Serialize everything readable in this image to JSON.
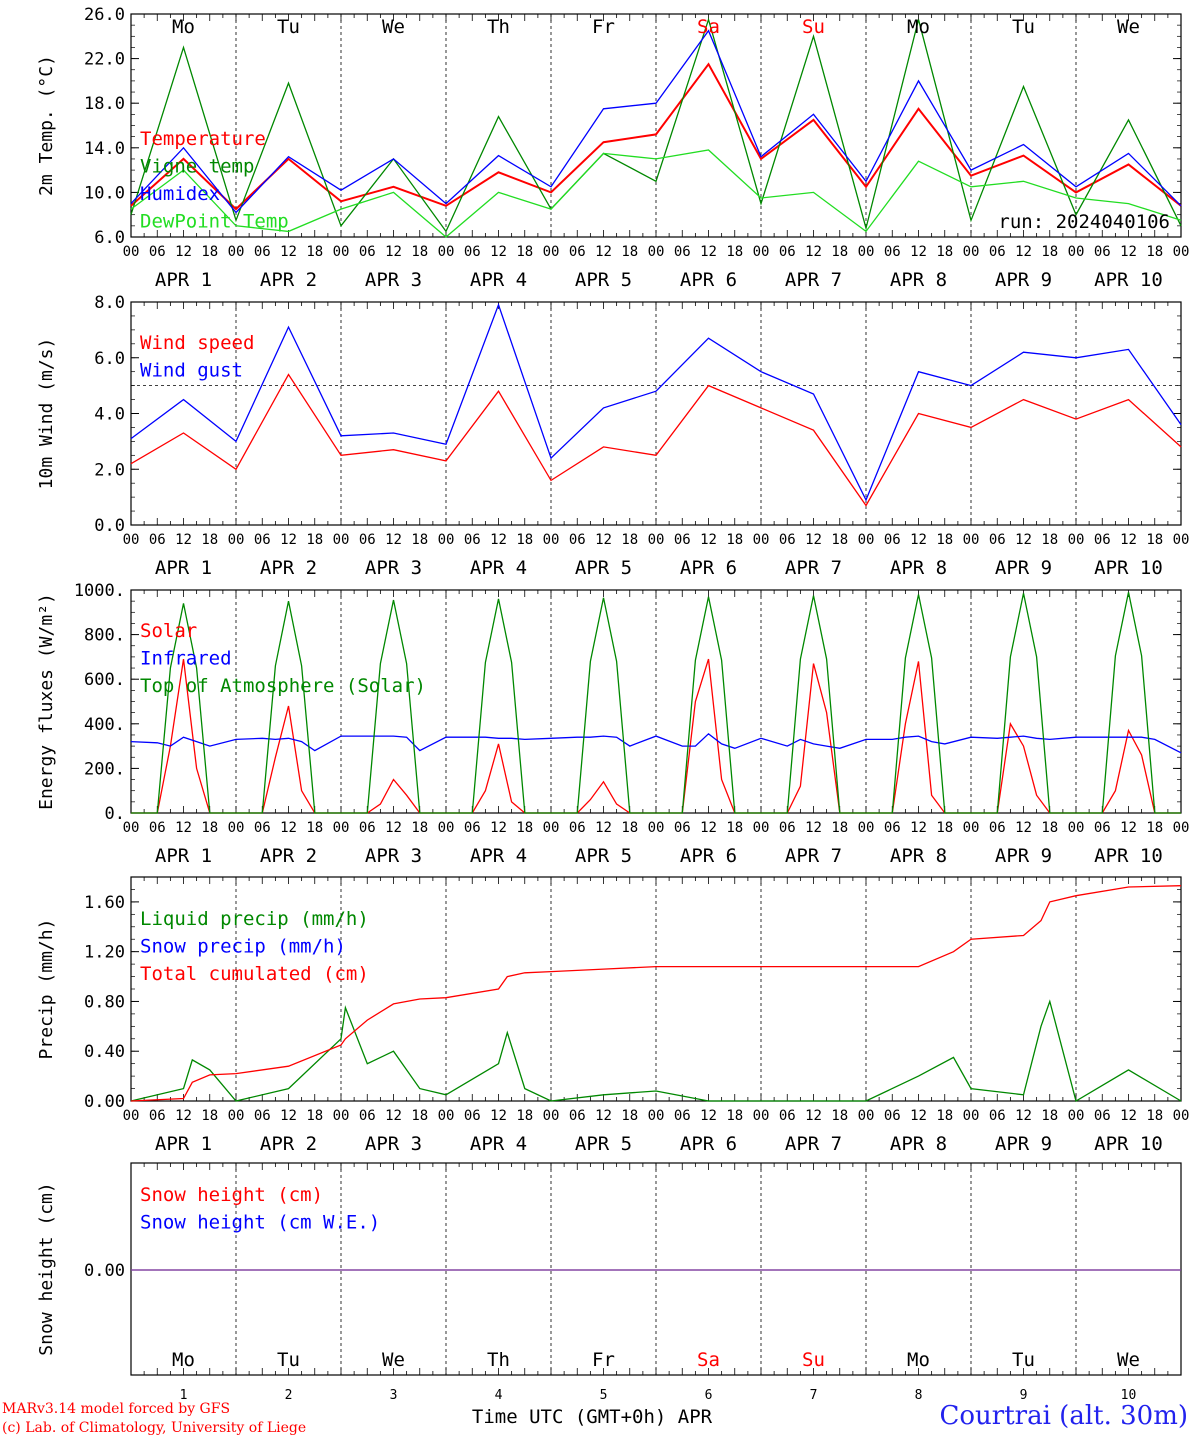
{
  "footer": {
    "model": "MARv3.14 model forced by GFS",
    "lab": "(c) Lab. of Climatology, University of Liege",
    "station": "Courtrai (alt. 30m)",
    "time_label": "Time UTC (GMT+0h) APR"
  },
  "colors": {
    "red": "#ff0000",
    "green": "#008800",
    "blue": "#0000ff",
    "light_green": "#22dd22",
    "purple": "#7f3f9f"
  },
  "chart_data": [
    {
      "id": "temp",
      "type": "line",
      "ylabel": "2m Temp. (°C)",
      "ylim": [
        6,
        26
      ],
      "yticks": [
        "6.0",
        "10.0",
        "14.0",
        "18.0",
        "22.0",
        "26.0"
      ],
      "annotation": "run: 2024040106",
      "days": [
        "Mo",
        "Tu",
        "We",
        "Th",
        "Fr",
        "Sa",
        "Su",
        "Mo",
        "Tu",
        "We"
      ],
      "weekend_days": [
        "Sa",
        "Su"
      ],
      "x_hours": [
        0,
        12,
        24,
        36,
        48,
        60,
        72,
        84,
        96,
        108,
        120,
        132,
        144,
        156,
        168,
        180,
        192,
        204,
        216,
        228,
        240
      ],
      "series": [
        {
          "name": "Temperature",
          "color": "#ff0000",
          "values": [
            8.8,
            13.0,
            8.5,
            13.0,
            9.2,
            10.5,
            8.8,
            11.8,
            10.0,
            14.5,
            15.2,
            21.5,
            13.0,
            16.5,
            10.5,
            17.5,
            11.5,
            13.3,
            10.0,
            12.5,
            8.8
          ]
        },
        {
          "name": "Vigne temp",
          "color": "#008800",
          "values": [
            8.0,
            23.0,
            7.5,
            19.8,
            7.0,
            13.0,
            6.5,
            16.8,
            8.5,
            13.5,
            11.0,
            25.5,
            9.0,
            24.0,
            6.8,
            25.5,
            7.5,
            19.5,
            8.0,
            16.5,
            7.0
          ]
        },
        {
          "name": "Humidex",
          "color": "#0000ff",
          "values": [
            9.0,
            14.0,
            8.2,
            13.2,
            10.2,
            13.0,
            9.0,
            13.3,
            10.5,
            17.5,
            18.0,
            24.5,
            13.2,
            17.0,
            11.0,
            20.0,
            12.0,
            14.3,
            10.5,
            13.5,
            8.8
          ]
        },
        {
          "name": "DewPoint Temp",
          "color": "#22dd22",
          "values": [
            8.5,
            12.0,
            7.0,
            6.5,
            8.5,
            10.0,
            6.0,
            10.0,
            8.5,
            13.5,
            13.0,
            13.8,
            9.5,
            10.0,
            6.5,
            12.8,
            10.5,
            11.0,
            9.5,
            9.0,
            7.5
          ]
        }
      ]
    },
    {
      "id": "wind",
      "type": "line",
      "ylabel": "10m Wind (m/s)",
      "ylim": [
        0,
        8
      ],
      "yticks": [
        "0.0",
        "2.0",
        "4.0",
        "6.0",
        "8.0"
      ],
      "reference_line": 5.0,
      "x_hours": [
        0,
        12,
        24,
        36,
        48,
        60,
        72,
        84,
        96,
        108,
        120,
        132,
        144,
        156,
        168,
        180,
        192,
        204,
        216,
        228,
        240
      ],
      "series": [
        {
          "name": "Wind speed",
          "color": "#ff0000",
          "values": [
            2.2,
            3.3,
            2.0,
            5.4,
            2.5,
            2.7,
            2.3,
            4.8,
            1.6,
            2.8,
            2.5,
            5.0,
            4.2,
            3.4,
            0.7,
            4.0,
            3.5,
            4.5,
            3.8,
            4.5,
            2.8
          ]
        },
        {
          "name": "Wind gust",
          "color": "#0000ff",
          "values": [
            3.1,
            4.5,
            3.0,
            7.1,
            3.2,
            3.3,
            2.9,
            7.9,
            2.4,
            4.2,
            4.8,
            6.7,
            5.5,
            4.7,
            0.9,
            5.5,
            5.0,
            6.2,
            6.0,
            6.3,
            3.6
          ]
        }
      ]
    },
    {
      "id": "energy",
      "type": "line",
      "ylabel": "Energy fluxes (W/m²)",
      "ylim": [
        0,
        1000
      ],
      "yticks": [
        "0.",
        "200.",
        "400.",
        "600.",
        "800.",
        "1000."
      ],
      "x_hours": [
        0,
        6,
        9,
        12,
        15,
        18,
        24,
        30,
        33,
        36,
        39,
        42,
        48,
        54,
        57,
        60,
        63,
        66,
        72,
        78,
        81,
        84,
        87,
        90,
        96,
        102,
        105,
        108,
        111,
        114,
        120,
        126,
        129,
        132,
        135,
        138,
        144,
        150,
        153,
        156,
        159,
        162,
        168,
        174,
        177,
        180,
        183,
        186,
        192,
        198,
        201,
        204,
        207,
        210,
        216,
        222,
        225,
        228,
        231,
        234,
        240
      ],
      "series": [
        {
          "name": "Solar",
          "color": "#ff0000",
          "values": [
            0,
            0,
            300,
            690,
            200,
            0,
            0,
            0,
            250,
            480,
            100,
            0,
            0,
            0,
            40,
            150,
            80,
            0,
            0,
            0,
            100,
            310,
            50,
            0,
            0,
            0,
            60,
            140,
            40,
            0,
            0,
            0,
            500,
            690,
            150,
            0,
            0,
            0,
            120,
            670,
            450,
            0,
            0,
            0,
            400,
            680,
            80,
            0,
            0,
            0,
            400,
            300,
            80,
            0,
            0,
            0,
            100,
            370,
            260,
            0,
            0
          ]
        },
        {
          "name": "Infrared",
          "color": "#0000ff",
          "values": [
            320,
            315,
            300,
            340,
            320,
            300,
            330,
            335,
            330,
            335,
            320,
            280,
            345,
            345,
            345,
            345,
            340,
            280,
            340,
            340,
            340,
            335,
            335,
            330,
            335,
            340,
            340,
            345,
            340,
            300,
            345,
            300,
            300,
            355,
            310,
            290,
            335,
            300,
            330,
            310,
            300,
            290,
            330,
            330,
            340,
            345,
            320,
            310,
            340,
            335,
            340,
            345,
            335,
            330,
            340,
            340,
            340,
            340,
            340,
            330,
            270
          ]
        },
        {
          "name": "Top of Atmosphere (Solar)",
          "color": "#008800",
          "values": [
            0,
            0,
            650,
            940,
            650,
            0,
            0,
            0,
            660,
            950,
            660,
            0,
            0,
            0,
            670,
            955,
            670,
            0,
            0,
            0,
            675,
            960,
            675,
            0,
            0,
            0,
            680,
            965,
            680,
            0,
            0,
            0,
            685,
            970,
            685,
            0,
            0,
            0,
            690,
            975,
            690,
            0,
            0,
            0,
            695,
            980,
            695,
            0,
            0,
            0,
            700,
            985,
            700,
            0,
            0,
            0,
            705,
            990,
            705,
            0,
            0
          ]
        }
      ]
    },
    {
      "id": "precip",
      "type": "line",
      "ylabel": "Precip (mm/h)",
      "ylim": [
        0,
        1.8
      ],
      "yticks": [
        "0.00",
        "0.40",
        "0.80",
        "1.20",
        "1.60"
      ],
      "x_hours": [
        0,
        12,
        14,
        18,
        24,
        36,
        48,
        49,
        54,
        60,
        66,
        72,
        84,
        86,
        90,
        96,
        108,
        120,
        132,
        144,
        168,
        180,
        188,
        192,
        204,
        208,
        210,
        216,
        228,
        240
      ],
      "series": [
        {
          "name": "Liquid precip (mm/h)",
          "color": "#008800",
          "values": [
            0,
            0.1,
            0.33,
            0.25,
            0,
            0.1,
            0.5,
            0.75,
            0.3,
            0.4,
            0.1,
            0.05,
            0.3,
            0.55,
            0.1,
            0,
            0.05,
            0.08,
            0,
            0,
            0,
            0.2,
            0.35,
            0.1,
            0.05,
            0.6,
            0.8,
            0,
            0.25,
            0
          ]
        },
        {
          "name": "Total cumulated (cm)",
          "color": "#ff0000",
          "values": [
            0,
            0.02,
            0.15,
            0.21,
            0.22,
            0.28,
            0.45,
            0.5,
            0.65,
            0.78,
            0.82,
            0.83,
            0.9,
            1.0,
            1.03,
            1.04,
            1.06,
            1.08,
            1.08,
            1.08,
            1.08,
            1.08,
            1.2,
            1.3,
            1.33,
            1.45,
            1.6,
            1.65,
            1.72,
            1.73
          ]
        }
      ]
    },
    {
      "id": "snow",
      "type": "line",
      "ylabel": "Snow height (cm)",
      "yticks": [
        "0.00"
      ],
      "day_numbers": [
        "1",
        "2",
        "3",
        "4",
        "5",
        "6",
        "7",
        "8",
        "9",
        "10"
      ],
      "x_hours": [
        0,
        240
      ],
      "series": [
        {
          "name": "Snow height (cm)",
          "color": "#ff0000",
          "values": [
            0,
            0
          ]
        },
        {
          "name": "Snow height (cm W.E.)",
          "color": "#0000ff",
          "values": [
            0,
            0
          ]
        }
      ]
    }
  ],
  "axis": {
    "hour_labels": [
      "00",
      "06",
      "12",
      "18"
    ],
    "end_label": "00",
    "date_labels": [
      "APR  1",
      "APR  2",
      "APR  3",
      "APR  4",
      "APR  5",
      "APR  6",
      "APR  7",
      "APR  8",
      "APR  9",
      "APR 10"
    ]
  }
}
